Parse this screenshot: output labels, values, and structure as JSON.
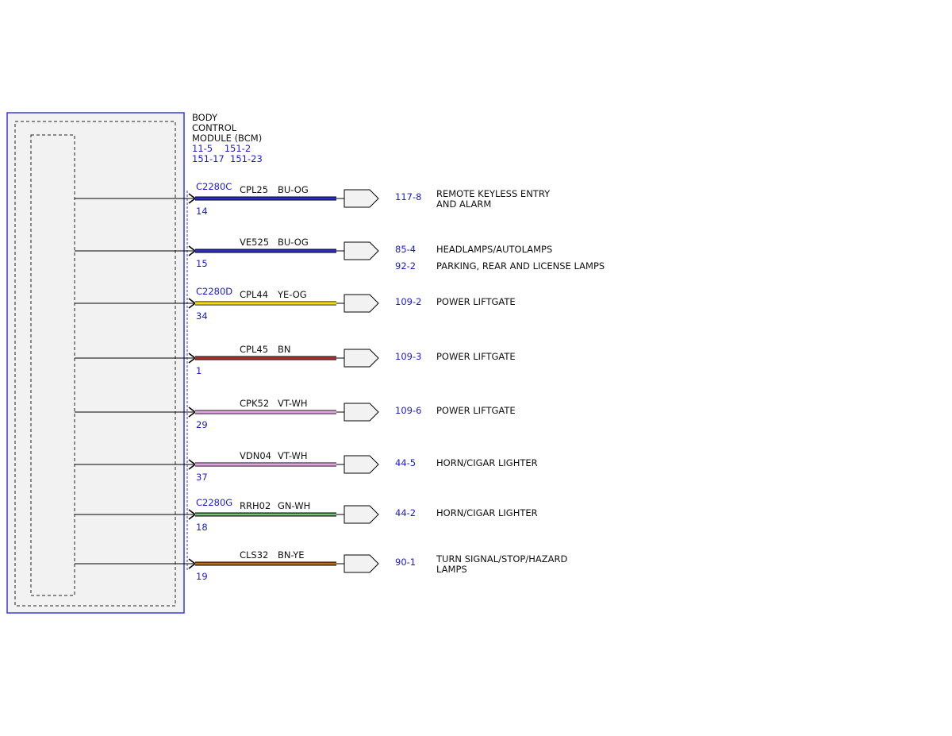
{
  "module": {
    "title_lines": [
      "BODY",
      "CONTROL",
      "MODULE (BCM)"
    ],
    "ref_lines": [
      "11-5    151-2",
      "151-17  151-23"
    ]
  },
  "colors": {
    "module_border": "#3a3ad8",
    "module_fill": "#f2f2f2",
    "ref_text": "#1a1ad6",
    "wire_outline": "#000000"
  },
  "circuits": [
    {
      "connector": "C2280C",
      "pin": "14",
      "circuit": "CPL25",
      "wire_color": "BU-OG",
      "stroke": "#1f1f9e",
      "stripe": "#3a3ae0",
      "destinations": [
        {
          "ref": "117-8",
          "desc": [
            "REMOTE KEYLESS ENTRY",
            "AND ALARM"
          ]
        }
      ]
    },
    {
      "connector": "",
      "pin": "15",
      "circuit": "VE525",
      "wire_color": "BU-OG",
      "stroke": "#1f1f9e",
      "stripe": "#3a3ae0",
      "destinations": [
        {
          "ref": "85-4",
          "desc": [
            "HEADLAMPS/AUTOLAMPS"
          ]
        },
        {
          "ref": "92-2",
          "desc": [
            "PARKING, REAR AND LICENSE LAMPS"
          ]
        }
      ]
    },
    {
      "connector": "C2280D",
      "pin": "34",
      "circuit": "CPL44",
      "wire_color": "YE-OG",
      "stroke": "#e8c800",
      "stripe": "#fff13a",
      "destinations": [
        {
          "ref": "109-2",
          "desc": [
            "POWER LIFTGATE"
          ]
        }
      ]
    },
    {
      "connector": "",
      "pin": "1",
      "circuit": "CPL45",
      "wire_color": "BN",
      "stroke": "#9e2a2a",
      "stripe": "#b33434",
      "destinations": [
        {
          "ref": "109-3",
          "desc": [
            "POWER LIFTGATE"
          ]
        }
      ]
    },
    {
      "connector": "",
      "pin": "29",
      "circuit": "CPK52",
      "wire_color": "VT-WH",
      "stroke": "#c98ac9",
      "stripe": "#f0c2f0",
      "destinations": [
        {
          "ref": "109-6",
          "desc": [
            "POWER LIFTGATE"
          ]
        }
      ]
    },
    {
      "connector": "",
      "pin": "37",
      "circuit": "VDN04",
      "wire_color": "VT-WH",
      "stroke": "#c98ac9",
      "stripe": "#f0c2f0",
      "destinations": [
        {
          "ref": "44-5",
          "desc": [
            "HORN/CIGAR LIGHTER"
          ]
        }
      ]
    },
    {
      "connector": "C2280G",
      "pin": "18",
      "circuit": "RRH02",
      "wire_color": "GN-WH",
      "stroke": "#1d7a1d",
      "stripe": "#e9f7e9",
      "destinations": [
        {
          "ref": "44-2",
          "desc": [
            "HORN/CIGAR LIGHTER"
          ]
        }
      ]
    },
    {
      "connector": "",
      "pin": "19",
      "circuit": "CLS32",
      "wire_color": "BN-YE",
      "stroke": "#8a3a10",
      "stripe": "#d9a400",
      "destinations": [
        {
          "ref": "90-1",
          "desc": [
            "TURN SIGNAL/STOP/HAZARD",
            "LAMPS"
          ]
        }
      ]
    }
  ]
}
